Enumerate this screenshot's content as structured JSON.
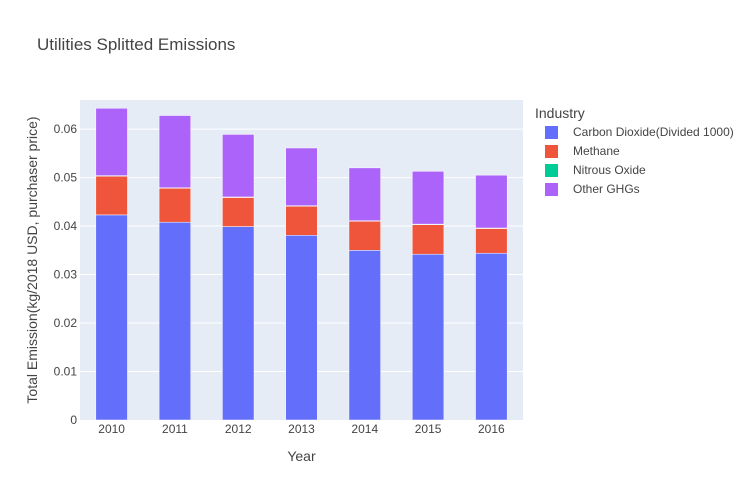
{
  "chart_data": {
    "type": "bar",
    "stacked": true,
    "title": "Utilities Splitted Emissions",
    "xlabel": "Year",
    "ylabel": "Total Emission(kg/2018 USD, purchaser price)",
    "categories": [
      "2010",
      "2011",
      "2012",
      "2013",
      "2014",
      "2015",
      "2016"
    ],
    "ylim": [
      0,
      0.066
    ],
    "yticks": [
      0,
      0.01,
      0.02,
      0.03,
      0.04,
      0.05,
      0.06
    ],
    "ytick_labels": [
      "0",
      "0.01",
      "0.02",
      "0.03",
      "0.04",
      "0.05",
      "0.06"
    ],
    "legend_title": "Industry",
    "legend_position": "right",
    "grid": true,
    "series": [
      {
        "name": "Carbon Dioxide(Divided 1000)",
        "color": "#636efa",
        "values": [
          0.0423,
          0.0408,
          0.0399,
          0.0381,
          0.035,
          0.0342,
          0.0344
        ]
      },
      {
        "name": "Methane",
        "color": "#ef553b",
        "values": [
          0.008,
          0.007,
          0.006,
          0.006,
          0.006,
          0.0061,
          0.0051
        ]
      },
      {
        "name": "Nitrous Oxide",
        "color": "#00cc96",
        "values": [
          0.0001,
          0.0001,
          0.0001,
          0.0001,
          0.0001,
          0.0001,
          0.0001
        ]
      },
      {
        "name": "Other GHGs",
        "color": "#ab63fa",
        "values": [
          0.0139,
          0.0149,
          0.0129,
          0.0119,
          0.0109,
          0.0109,
          0.0109
        ]
      }
    ]
  }
}
